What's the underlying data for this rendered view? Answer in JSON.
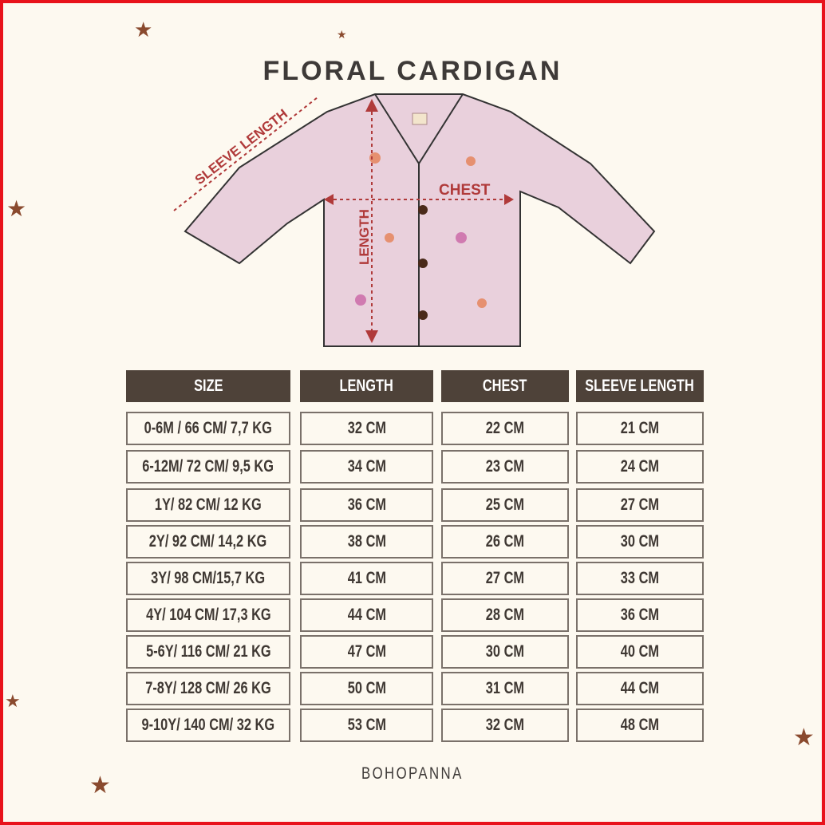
{
  "title": "FLORAL CARDIGAN",
  "diagram_labels": {
    "sleeve": "SLEEVE LENGTH",
    "chest": "CHEST",
    "length": "LENGTH"
  },
  "table": {
    "headers": [
      "SIZE",
      "LENGTH",
      "CHEST",
      "SLEEVE LENGTH"
    ],
    "rows": [
      [
        "0-6M / 66 CM/ 7,7 KG",
        "32 CM",
        "22 CM",
        "21 CM"
      ],
      [
        "6-12M/ 72 CM/ 9,5 KG",
        "34 CM",
        "23 CM",
        "24 CM"
      ],
      [
        "1Y/ 82 CM/ 12 KG",
        "36 CM",
        "25 CM",
        "27 CM"
      ],
      [
        "2Y/ 92 CM/ 14,2 KG",
        "38 CM",
        "26 CM",
        "30 CM"
      ],
      [
        "3Y/ 98 CM/15,7 KG",
        "41 CM",
        "27 CM",
        "33 CM"
      ],
      [
        "4Y/ 104 CM/ 17,3 KG",
        "44 CM",
        "28 CM",
        "36 CM"
      ],
      [
        "5-6Y/ 116 CM/ 21 KG",
        "47 CM",
        "30 CM",
        "40 CM"
      ],
      [
        "7-8Y/ 128 CM/ 26 KG",
        "50 CM",
        "31 CM",
        "44 CM"
      ],
      [
        "9-10Y/ 140 CM/ 32 KG",
        "53 CM",
        "32 CM",
        "48 CM"
      ]
    ]
  },
  "brand": "BOHOPANNA",
  "colors": {
    "header_bg": "#4e4239",
    "background": "#fdf9f0",
    "frame": "#e8121b",
    "cardigan": "#e9d0dc",
    "measure": "#b03a3a"
  }
}
